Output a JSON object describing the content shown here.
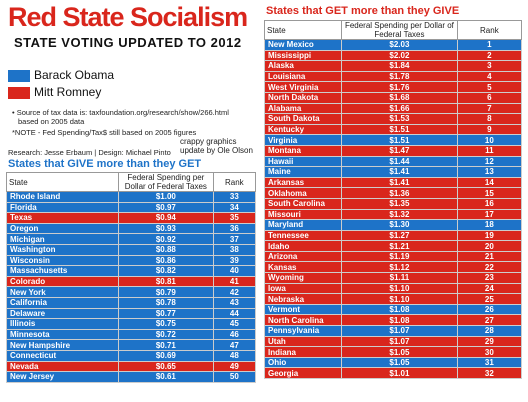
{
  "header": {
    "title": "Red State Socialism",
    "subtitle": "STATE VOTING UPDATED TO 2012"
  },
  "legend": [
    {
      "label": "Barack Obama",
      "color": "#1e73c8"
    },
    {
      "label": "Mitt Romney",
      "color": "#d9261c"
    }
  ],
  "notes": [
    "• Source of tax data is: taxfoundation.org/research/show/266.html",
    "based on 2005 data",
    "*NOTE - Fed Spending/Tax$ still based on 2005 figures"
  ],
  "credits": {
    "research": "Research: Jesse Erbaum | Design: Michael Pinto",
    "update": "crappy graphics update by Ole Olson"
  },
  "give_table": {
    "title": "States that GIVE more than they GET",
    "columns": [
      "State",
      "Federal Spending per Dollar of Federal Taxes",
      "Rank"
    ],
    "rows": [
      {
        "cells": [
          "Rhode Island",
          "$1.00",
          "33"
        ],
        "color": "#1e73c8"
      },
      {
        "cells": [
          "Florida",
          "$0.97",
          "34"
        ],
        "color": "#1e73c8"
      },
      {
        "cells": [
          "Texas",
          "$0.94",
          "35"
        ],
        "color": "#d9261c"
      },
      {
        "cells": [
          "Oregon",
          "$0.93",
          "36"
        ],
        "color": "#1e73c8"
      },
      {
        "cells": [
          "Michigan",
          "$0.92",
          "37"
        ],
        "color": "#1e73c8"
      },
      {
        "cells": [
          "Washington",
          "$0.88",
          "38"
        ],
        "color": "#1e73c8"
      },
      {
        "cells": [
          "Wisconsin",
          "$0.86",
          "39"
        ],
        "color": "#1e73c8"
      },
      {
        "cells": [
          "Massachusetts",
          "$0.82",
          "40"
        ],
        "color": "#1e73c8"
      },
      {
        "cells": [
          "Colorado",
          "$0.81",
          "41"
        ],
        "color": "#d9261c"
      },
      {
        "cells": [
          "New York",
          "$0.79",
          "42"
        ],
        "color": "#1e73c8"
      },
      {
        "cells": [
          "California",
          "$0.78",
          "43"
        ],
        "color": "#1e73c8"
      },
      {
        "cells": [
          "Delaware",
          "$0.77",
          "44"
        ],
        "color": "#1e73c8"
      },
      {
        "cells": [
          "Illinois",
          "$0.75",
          "45"
        ],
        "color": "#1e73c8"
      },
      {
        "cells": [
          "Minnesota",
          "$0.72",
          "46"
        ],
        "color": "#1e73c8"
      },
      {
        "cells": [
          "New Hampshire",
          "$0.71",
          "47"
        ],
        "color": "#1e73c8"
      },
      {
        "cells": [
          "Connecticut",
          "$0.69",
          "48"
        ],
        "color": "#1e73c8"
      },
      {
        "cells": [
          "Nevada",
          "$0.65",
          "49"
        ],
        "color": "#d9261c"
      },
      {
        "cells": [
          "New Jersey",
          "$0.61",
          "50"
        ],
        "color": "#1e73c8"
      }
    ]
  },
  "get_table": {
    "title": "States that GET more than they GIVE",
    "columns": [
      "State",
      "Federal Spending per Dollar of Federal Taxes",
      "Rank"
    ],
    "rows": [
      {
        "cells": [
          "New Mexico",
          "$2.03",
          "1"
        ],
        "color": "#1e73c8"
      },
      {
        "cells": [
          "Mississippi",
          "$2.02",
          "2"
        ],
        "color": "#d9261c"
      },
      {
        "cells": [
          "Alaska",
          "$1.84",
          "3"
        ],
        "color": "#d9261c"
      },
      {
        "cells": [
          "Louisiana",
          "$1.78",
          "4"
        ],
        "color": "#d9261c"
      },
      {
        "cells": [
          "West Virginia",
          "$1.76",
          "5"
        ],
        "color": "#d9261c"
      },
      {
        "cells": [
          "North Dakota",
          "$1.68",
          "6"
        ],
        "color": "#d9261c"
      },
      {
        "cells": [
          "Alabama",
          "$1.66",
          "7"
        ],
        "color": "#d9261c"
      },
      {
        "cells": [
          "South Dakota",
          "$1.53",
          "8"
        ],
        "color": "#d9261c"
      },
      {
        "cells": [
          "Kentucky",
          "$1.51",
          "9"
        ],
        "color": "#d9261c"
      },
      {
        "cells": [
          "Virginia",
          "$1.51",
          "10"
        ],
        "color": "#1e73c8"
      },
      {
        "cells": [
          "Montana",
          "$1.47",
          "11"
        ],
        "color": "#d9261c"
      },
      {
        "cells": [
          "Hawaii",
          "$1.44",
          "12"
        ],
        "color": "#1e73c8"
      },
      {
        "cells": [
          "Maine",
          "$1.41",
          "13"
        ],
        "color": "#1e73c8"
      },
      {
        "cells": [
          "Arkansas",
          "$1.41",
          "14"
        ],
        "color": "#d9261c"
      },
      {
        "cells": [
          "Oklahoma",
          "$1.36",
          "15"
        ],
        "color": "#d9261c"
      },
      {
        "cells": [
          "South Carolina",
          "$1.35",
          "16"
        ],
        "color": "#d9261c"
      },
      {
        "cells": [
          "Missouri",
          "$1.32",
          "17"
        ],
        "color": "#d9261c"
      },
      {
        "cells": [
          "Maryland",
          "$1.30",
          "18"
        ],
        "color": "#1e73c8"
      },
      {
        "cells": [
          "Tennessee",
          "$1.27",
          "19"
        ],
        "color": "#d9261c"
      },
      {
        "cells": [
          "Idaho",
          "$1.21",
          "20"
        ],
        "color": "#d9261c"
      },
      {
        "cells": [
          "Arizona",
          "$1.19",
          "21"
        ],
        "color": "#d9261c"
      },
      {
        "cells": [
          "Kansas",
          "$1.12",
          "22"
        ],
        "color": "#d9261c"
      },
      {
        "cells": [
          "Wyoming",
          "$1.11",
          "23"
        ],
        "color": "#d9261c"
      },
      {
        "cells": [
          "Iowa",
          "$1.10",
          "24"
        ],
        "color": "#d9261c"
      },
      {
        "cells": [
          "Nebraska",
          "$1.10",
          "25"
        ],
        "color": "#d9261c"
      },
      {
        "cells": [
          "Vermont",
          "$1.08",
          "26"
        ],
        "color": "#1e73c8"
      },
      {
        "cells": [
          "North Carolina",
          "$1.08",
          "27"
        ],
        "color": "#d9261c"
      },
      {
        "cells": [
          "Pennsylvania",
          "$1.07",
          "28"
        ],
        "color": "#1e73c8"
      },
      {
        "cells": [
          "Utah",
          "$1.07",
          "29"
        ],
        "color": "#d9261c"
      },
      {
        "cells": [
          "Indiana",
          "$1.05",
          "30"
        ],
        "color": "#d9261c"
      },
      {
        "cells": [
          "Ohio",
          "$1.05",
          "31"
        ],
        "color": "#1e73c8"
      },
      {
        "cells": [
          "Georgia",
          "$1.01",
          "32"
        ],
        "color": "#d9261c"
      }
    ]
  }
}
